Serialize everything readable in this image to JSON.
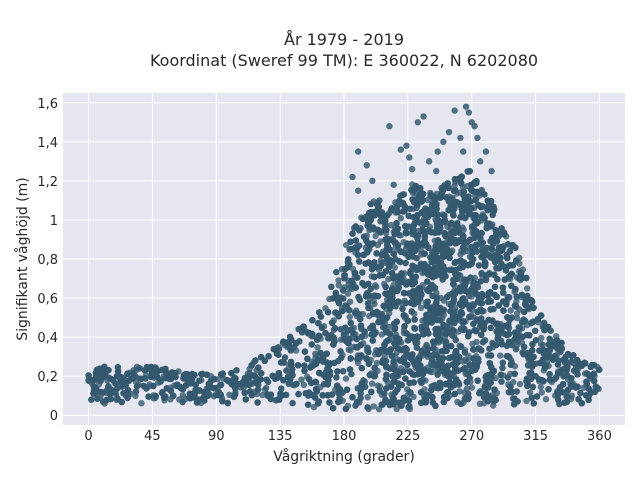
{
  "chart_data": {
    "type": "scatter",
    "title": "År 1979 - 2019",
    "subtitle": "Koordinat (Sweref 99 TM): E 360022, N 6202080",
    "xlabel": "Vågriktning (grader)",
    "ylabel": "Signifikant våghöjd (m)",
    "xlim": [
      -18,
      378
    ],
    "ylim": [
      -0.05,
      1.65
    ],
    "x_ticks": [
      0,
      45,
      90,
      135,
      180,
      225,
      270,
      315,
      360
    ],
    "x_tick_labels": [
      "0",
      "45",
      "90",
      "135",
      "180",
      "225",
      "270",
      "315",
      "360"
    ],
    "y_ticks": [
      0,
      0.2,
      0.4,
      0.6,
      0.8,
      1.0,
      1.2,
      1.4,
      1.6
    ],
    "y_tick_labels": [
      "0",
      "0,2",
      "0,4",
      "0,6",
      "0,8",
      "1",
      "1,2",
      "1,4",
      "1,6"
    ],
    "grid": true,
    "legend": "none",
    "colors": {
      "marker": "#34586e",
      "plot_bg": "#e5e6ef",
      "grid": "#ffffff"
    },
    "envelope": {
      "x": [
        0,
        20,
        45,
        70,
        90,
        110,
        135,
        150,
        165,
        180,
        190,
        200,
        215,
        225,
        240,
        255,
        265,
        270,
        280,
        295,
        305,
        315,
        330,
        345,
        360
      ],
      "max": [
        0.25,
        0.25,
        0.25,
        0.22,
        0.22,
        0.25,
        0.38,
        0.45,
        0.55,
        0.85,
        1.0,
        1.1,
        1.1,
        1.2,
        1.15,
        1.2,
        1.25,
        1.25,
        1.15,
        0.95,
        0.8,
        0.55,
        0.4,
        0.28,
        0.25
      ],
      "min": [
        0.06,
        0.06,
        0.06,
        0.06,
        0.06,
        0.06,
        0.05,
        0.04,
        0.04,
        0.03,
        0.03,
        0.03,
        0.03,
        0.03,
        0.03,
        0.03,
        0.03,
        0.03,
        0.03,
        0.04,
        0.04,
        0.05,
        0.05,
        0.06,
        0.06
      ]
    },
    "outliers": {
      "x": [
        186,
        190,
        196,
        200,
        212,
        220,
        224,
        228,
        232,
        236,
        240,
        246,
        250,
        254,
        258,
        262,
        264,
        266,
        268,
        270,
        272,
        274,
        276,
        280,
        284,
        190,
        205,
        215,
        226,
        245
      ],
      "y": [
        1.22,
        1.35,
        1.28,
        1.2,
        1.48,
        1.36,
        1.38,
        1.26,
        1.5,
        1.53,
        1.3,
        1.35,
        1.4,
        1.45,
        1.56,
        1.42,
        1.35,
        1.58,
        1.55,
        1.5,
        1.48,
        1.42,
        1.3,
        1.35,
        1.25,
        1.15,
        1.1,
        1.18,
        1.32,
        1.25
      ]
    },
    "point_count": 5200
  }
}
